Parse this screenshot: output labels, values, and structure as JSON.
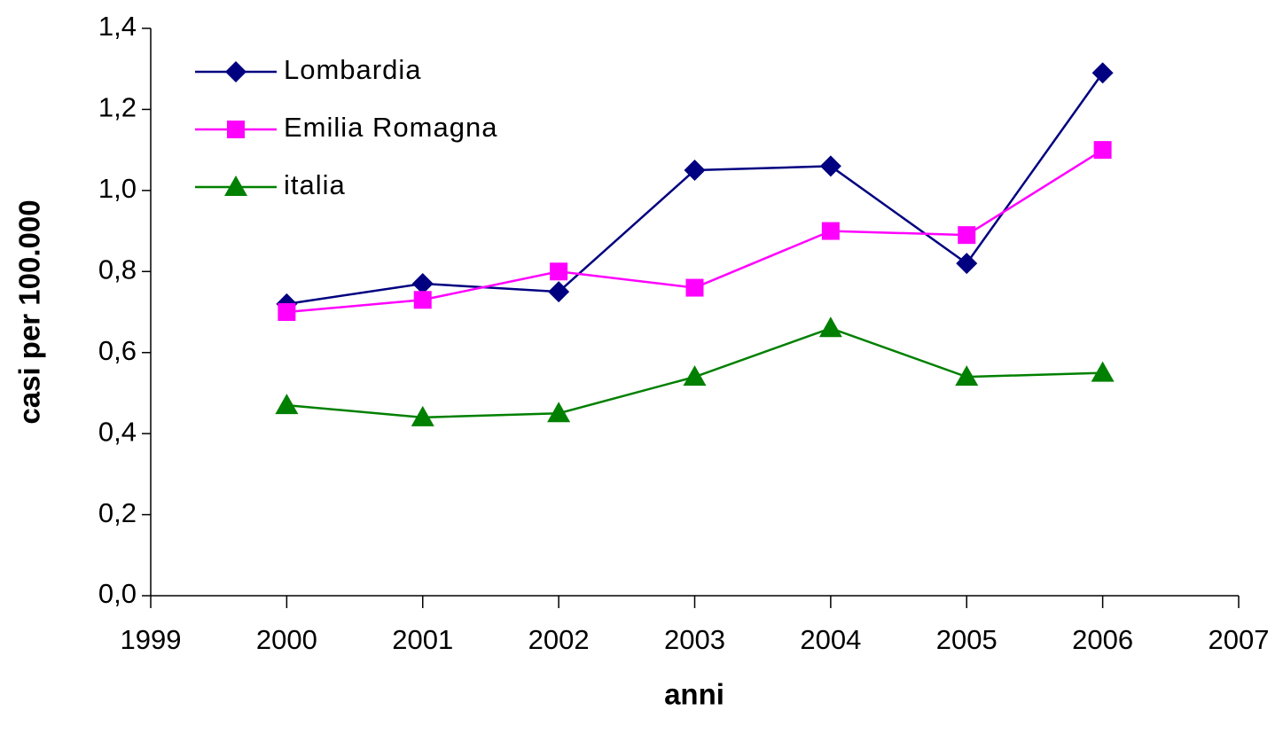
{
  "chart_data": {
    "type": "line",
    "x_label": "anni",
    "y_label": "casi per 100.000",
    "x": [
      2000,
      2001,
      2002,
      2003,
      2004,
      2005,
      2006
    ],
    "series": [
      {
        "name": "Lombardia",
        "color": "#000080",
        "marker": "diamond",
        "values": [
          0.72,
          0.77,
          0.75,
          1.05,
          1.06,
          0.82,
          1.29
        ]
      },
      {
        "name": "Emilia Romagna",
        "color": "#ff00ff",
        "marker": "square",
        "values": [
          0.7,
          0.73,
          0.8,
          0.76,
          0.9,
          0.89,
          1.1
        ]
      },
      {
        "name": "italia",
        "color": "#008000",
        "marker": "triangle",
        "values": [
          0.47,
          0.44,
          0.45,
          0.54,
          0.66,
          0.54,
          0.55
        ]
      }
    ],
    "xlim": [
      1999,
      2007
    ],
    "xticks": [
      1999,
      2000,
      2001,
      2002,
      2003,
      2004,
      2005,
      2006,
      2007
    ],
    "ylim": [
      0,
      1.4
    ],
    "yticks": [
      {
        "value": 0,
        "label": "0,0"
      },
      {
        "value": 0.2,
        "label": "0,2"
      },
      {
        "value": 0.4,
        "label": "0,4"
      },
      {
        "value": 0.6,
        "label": "0,6"
      },
      {
        "value": 0.8,
        "label": "0,8"
      },
      {
        "value": 1.0,
        "label": "1,0"
      },
      {
        "value": 1.2,
        "label": "1,2"
      },
      {
        "value": 1.4,
        "label": "1,4"
      }
    ],
    "grid": false,
    "legend": "upper left"
  }
}
